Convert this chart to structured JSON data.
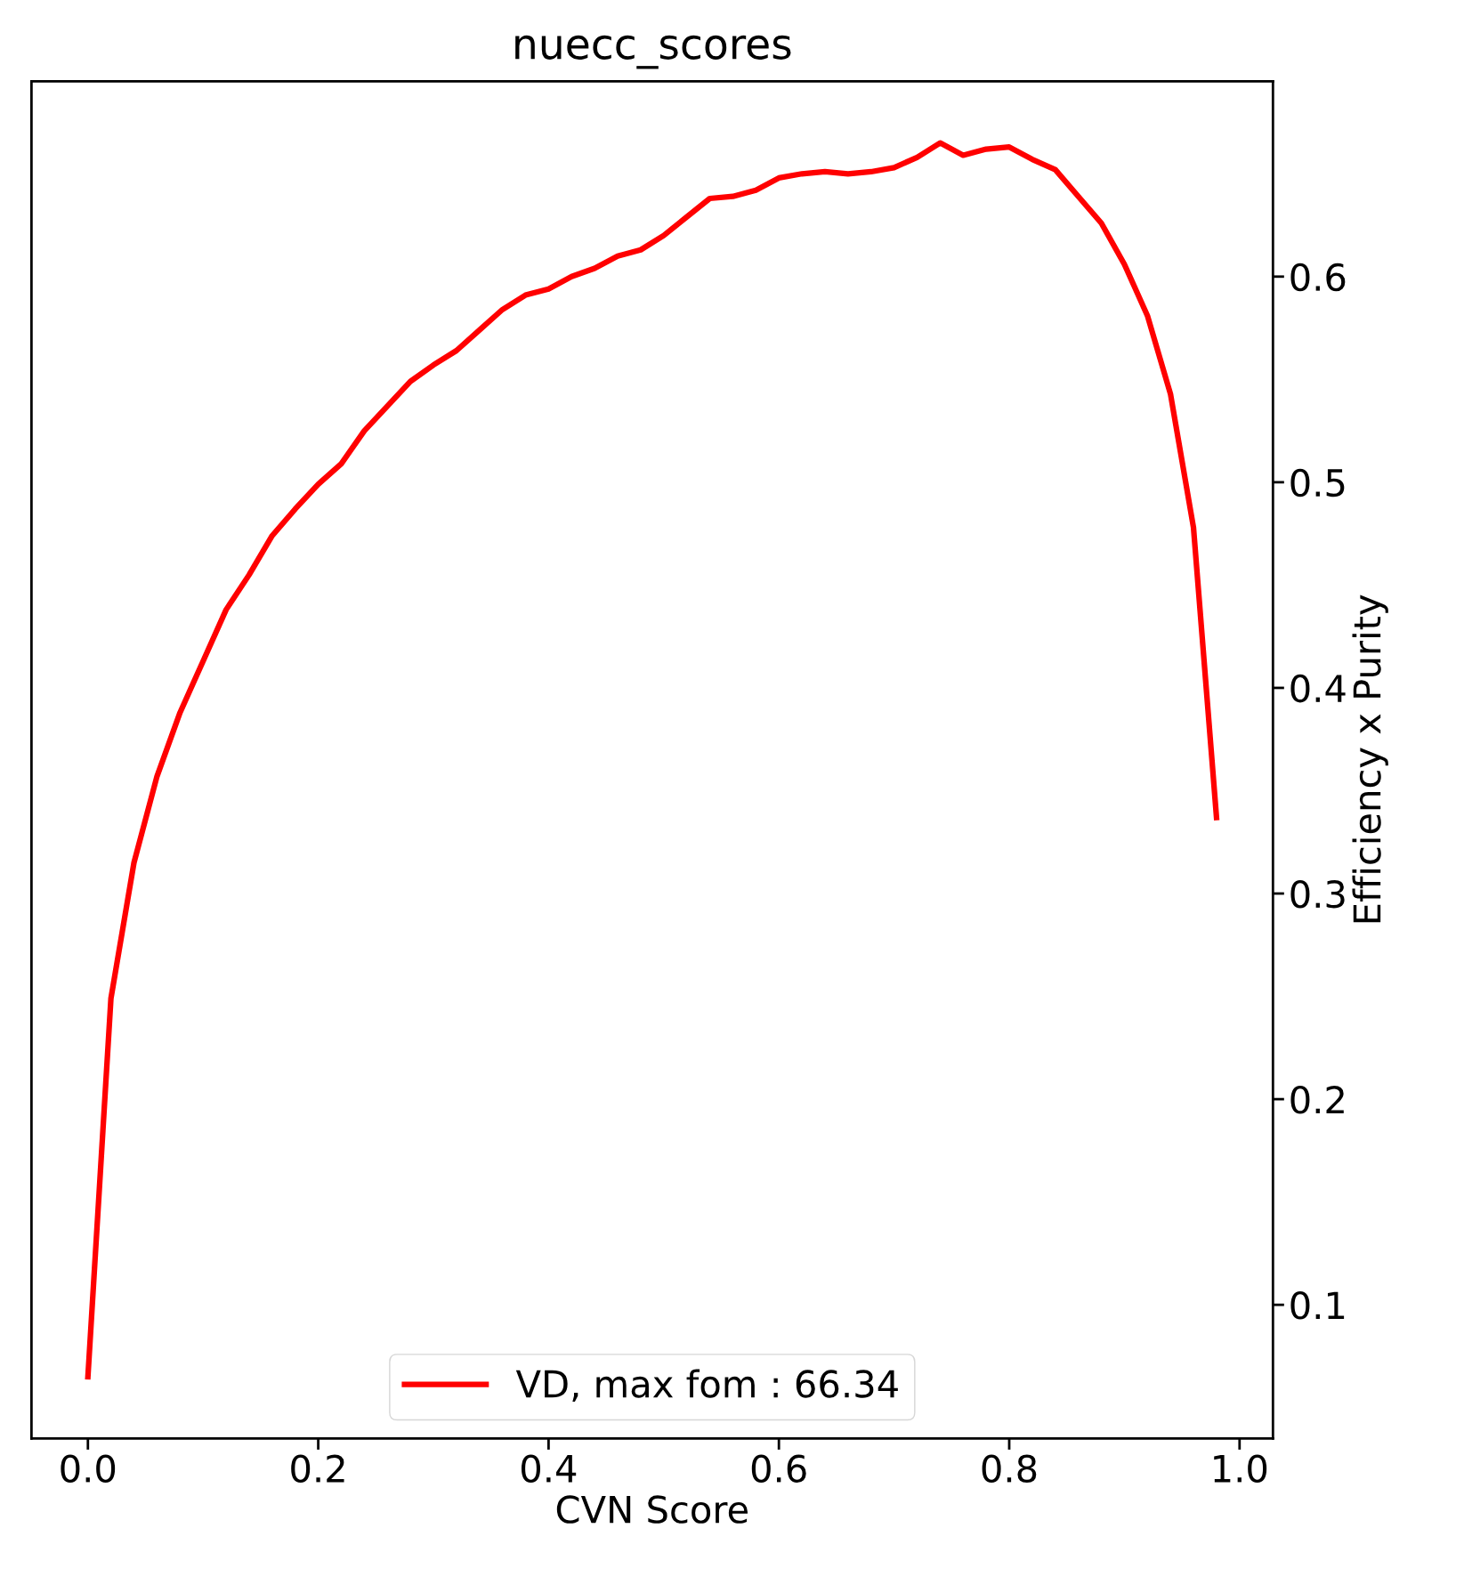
{
  "chart_data": {
    "type": "line",
    "title": "nuecc_scores",
    "xlabel": "CVN Score",
    "ylabel": "Efficiency x Purity",
    "x": [
      0.0,
      0.02,
      0.04,
      0.06,
      0.08,
      0.1,
      0.12,
      0.14,
      0.16,
      0.18,
      0.2,
      0.22,
      0.24,
      0.26,
      0.28,
      0.3,
      0.32,
      0.34,
      0.36,
      0.38,
      0.4,
      0.42,
      0.44,
      0.46,
      0.48,
      0.5,
      0.52,
      0.54,
      0.56,
      0.58,
      0.6,
      0.62,
      0.64,
      0.66,
      0.68,
      0.7,
      0.72,
      0.74,
      0.76,
      0.78,
      0.8,
      0.82,
      0.84,
      0.86,
      0.88,
      0.9,
      0.92,
      0.94,
      0.96,
      0.98
    ],
    "series": [
      {
        "name": "VD, max fom : 66.34",
        "color": "#ff0000",
        "values": [
          0.065,
          0.249,
          0.315,
          0.357,
          0.388,
          0.413,
          0.438,
          0.455,
          0.474,
          0.487,
          0.499,
          0.509,
          0.525,
          0.537,
          0.549,
          0.557,
          0.564,
          0.574,
          0.584,
          0.591,
          0.594,
          0.6,
          0.604,
          0.61,
          0.613,
          0.62,
          0.629,
          0.638,
          0.639,
          0.642,
          0.648,
          0.65,
          0.651,
          0.65,
          0.651,
          0.653,
          0.658,
          0.665,
          0.659,
          0.662,
          0.663,
          0.657,
          0.652,
          0.639,
          0.626,
          0.606,
          0.581,
          0.543,
          0.478,
          0.337
        ]
      }
    ],
    "xlim": [
      -0.049,
      1.029
    ],
    "ylim": [
      0.035,
      0.695
    ],
    "xticks": [
      {
        "value": 0.0,
        "label": "0.0"
      },
      0.2,
      0.4,
      0.6,
      0.8,
      {
        "value": 1.0,
        "label": "1.0"
      }
    ],
    "yticks": [
      0.1,
      0.2,
      0.3,
      0.4,
      0.5,
      0.6
    ],
    "legend": "bottom",
    "grid": false,
    "line_style": "solid",
    "marker": "none"
  }
}
